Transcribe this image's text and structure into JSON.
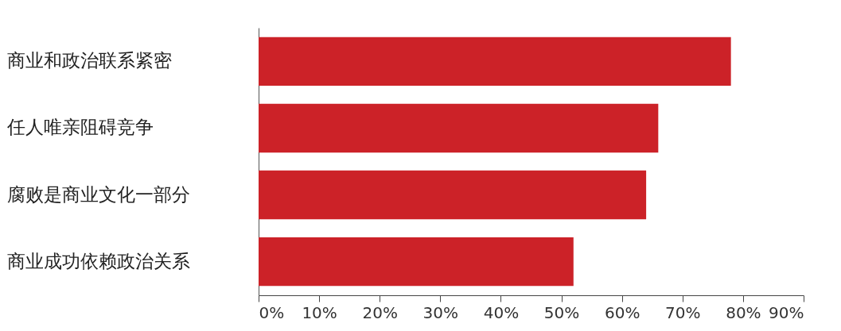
{
  "chart_data": {
    "type": "bar",
    "orientation": "horizontal",
    "categories": [
      "商业和政治联系紧密",
      "任人唯亲阻碍竞争",
      "腐败是商业文化一部分",
      "商业成功依赖政治关系"
    ],
    "values": [
      78,
      66,
      64,
      52
    ],
    "color": "#cc2228",
    "xlim": [
      0,
      90
    ],
    "xticks": [
      {
        "value": 0,
        "label": "0%"
      },
      {
        "value": 10,
        "label": "10%"
      },
      {
        "value": 20,
        "label": "20%"
      },
      {
        "value": 30,
        "label": "30%"
      },
      {
        "value": 40,
        "label": "40%"
      },
      {
        "value": 50,
        "label": "50%"
      },
      {
        "value": 60,
        "label": "60%"
      },
      {
        "value": 70,
        "label": "70%"
      },
      {
        "value": 80,
        "label": "80%"
      },
      {
        "value": 90,
        "label": "90%"
      }
    ],
    "grid": false
  }
}
